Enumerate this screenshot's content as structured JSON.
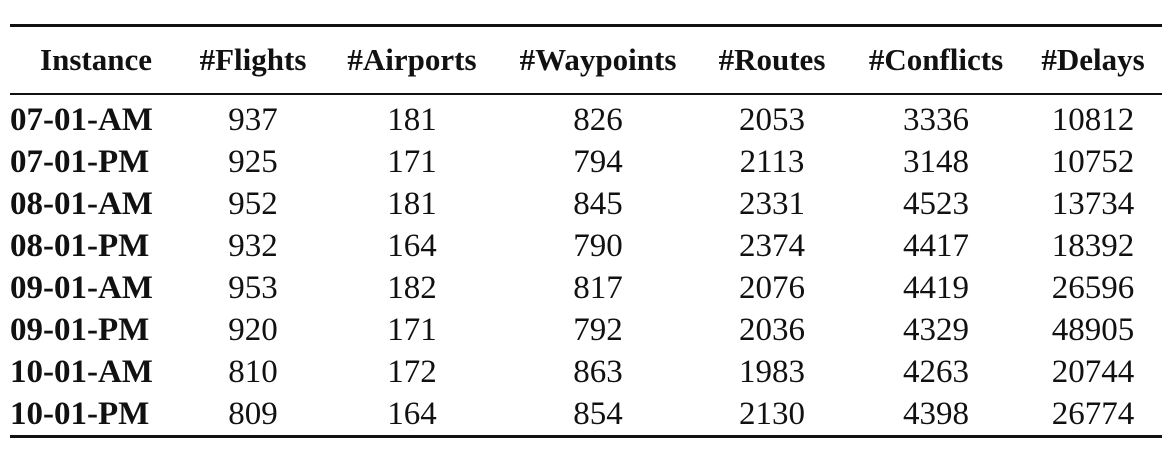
{
  "table": {
    "headers": [
      "Instance",
      "#Flights",
      "#Airports",
      "#Waypoints",
      "#Routes",
      "#Conflicts",
      "#Delays"
    ],
    "rows": [
      [
        "07-01-AM",
        "937",
        "181",
        "826",
        "2053",
        "3336",
        "10812"
      ],
      [
        "07-01-PM",
        "925",
        "171",
        "794",
        "2113",
        "3148",
        "10752"
      ],
      [
        "08-01-AM",
        "952",
        "181",
        "845",
        "2331",
        "4523",
        "13734"
      ],
      [
        "08-01-PM",
        "932",
        "164",
        "790",
        "2374",
        "4417",
        "18392"
      ],
      [
        "09-01-AM",
        "953",
        "182",
        "817",
        "2076",
        "4419",
        "26596"
      ],
      [
        "09-01-PM",
        "920",
        "171",
        "792",
        "2036",
        "4329",
        "48905"
      ],
      [
        "10-01-AM",
        "810",
        "172",
        "863",
        "1983",
        "4263",
        "20744"
      ],
      [
        "10-01-PM",
        "809",
        "164",
        "854",
        "2130",
        "4398",
        "26774"
      ]
    ]
  }
}
